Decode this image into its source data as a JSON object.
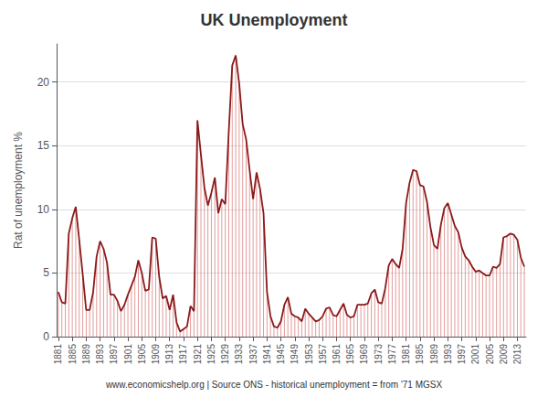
{
  "chart_data": {
    "type": "line",
    "title": "UK Unemployment",
    "ylabel": "Rat of unemployment %",
    "annotations": [
      "www.economicshelp.org | Source ONS - historical unemployment = from '71 MGSX"
    ],
    "x": [
      1881,
      1882,
      1883,
      1884,
      1885,
      1886,
      1887,
      1888,
      1889,
      1890,
      1891,
      1892,
      1893,
      1894,
      1895,
      1896,
      1897,
      1898,
      1899,
      1900,
      1901,
      1902,
      1903,
      1904,
      1905,
      1906,
      1907,
      1908,
      1909,
      1910,
      1911,
      1912,
      1913,
      1914,
      1915,
      1916,
      1917,
      1918,
      1919,
      1920,
      1921,
      1922,
      1923,
      1924,
      1925,
      1926,
      1927,
      1928,
      1929,
      1930,
      1931,
      1932,
      1933,
      1934,
      1935,
      1936,
      1937,
      1938,
      1939,
      1940,
      1941,
      1942,
      1943,
      1944,
      1945,
      1946,
      1947,
      1948,
      1949,
      1950,
      1951,
      1952,
      1953,
      1954,
      1955,
      1956,
      1957,
      1958,
      1959,
      1960,
      1961,
      1962,
      1963,
      1964,
      1965,
      1966,
      1967,
      1968,
      1969,
      1970,
      1971,
      1972,
      1973,
      1974,
      1975,
      1976,
      1977,
      1978,
      1979,
      1980,
      1981,
      1982,
      1983,
      1984,
      1985,
      1986,
      1987,
      1988,
      1989,
      1990,
      1991,
      1992,
      1993,
      1994,
      1995,
      1996,
      1997,
      1998,
      1999,
      2000,
      2001,
      2002,
      2003,
      2004,
      2005,
      2006,
      2007,
      2008,
      2009,
      2010,
      2011,
      2012,
      2013,
      2014,
      2015
    ],
    "series": [
      {
        "type": "bar",
        "color": "#D97070",
        "values": [
          3.5,
          2.7,
          2.6,
          8.1,
          9.3,
          10.2,
          7.6,
          4.9,
          2.1,
          2.1,
          3.5,
          6.3,
          7.5,
          6.9,
          5.8,
          3.3,
          3.3,
          2.8,
          2.0,
          2.5,
          3.3,
          4.0,
          4.7,
          6.0,
          5.0,
          3.6,
          3.7,
          7.8,
          7.7,
          4.7,
          3.0,
          3.2,
          2.1,
          3.3,
          1.1,
          0.4,
          0.6,
          0.8,
          2.4,
          2.0,
          17.0,
          14.3,
          11.7,
          10.3,
          11.3,
          12.5,
          9.7,
          10.8,
          10.4,
          16.1,
          21.3,
          22.1,
          19.9,
          16.7,
          15.5,
          13.1,
          10.8,
          12.9,
          11.6,
          9.7,
          3.5,
          1.6,
          0.8,
          0.7,
          1.2,
          2.5,
          3.1,
          1.8,
          1.6,
          1.5,
          1.2,
          2.2,
          1.8,
          1.5,
          1.2,
          1.3,
          1.6,
          2.2,
          2.3,
          1.7,
          1.6,
          2.1,
          2.6,
          1.7,
          1.5,
          1.6,
          2.5,
          2.5,
          2.5,
          2.6,
          3.4,
          3.7,
          2.7,
          2.6,
          3.8,
          5.6,
          6.1,
          5.7,
          5.4,
          6.9,
          10.5,
          12.1,
          13.1,
          13.0,
          11.9,
          11.8,
          10.6,
          8.6,
          7.2,
          6.9,
          8.8,
          10.1,
          10.5,
          9.6,
          8.7,
          8.2,
          7.0,
          6.3,
          6.0,
          5.5,
          5.1,
          5.2,
          5.0,
          4.8,
          4.8,
          5.5,
          5.4,
          5.7,
          7.8,
          7.9,
          8.1,
          8.0,
          7.6,
          6.2,
          5.5
        ]
      },
      {
        "type": "line",
        "color": "#8B1A1A",
        "values": [
          3.5,
          2.7,
          2.6,
          8.1,
          9.3,
          10.2,
          7.6,
          4.9,
          2.1,
          2.1,
          3.5,
          6.3,
          7.5,
          6.9,
          5.8,
          3.3,
          3.3,
          2.8,
          2.0,
          2.5,
          3.3,
          4.0,
          4.7,
          6.0,
          5.0,
          3.6,
          3.7,
          7.8,
          7.7,
          4.7,
          3.0,
          3.2,
          2.1,
          3.3,
          1.1,
          0.4,
          0.6,
          0.8,
          2.4,
          2.0,
          17.0,
          14.3,
          11.7,
          10.3,
          11.3,
          12.5,
          9.7,
          10.8,
          10.4,
          16.1,
          21.3,
          22.1,
          19.9,
          16.7,
          15.5,
          13.1,
          10.8,
          12.9,
          11.6,
          9.7,
          3.5,
          1.6,
          0.8,
          0.7,
          1.2,
          2.5,
          3.1,
          1.8,
          1.6,
          1.5,
          1.2,
          2.2,
          1.8,
          1.5,
          1.2,
          1.3,
          1.6,
          2.2,
          2.3,
          1.7,
          1.6,
          2.1,
          2.6,
          1.7,
          1.5,
          1.6,
          2.5,
          2.5,
          2.5,
          2.6,
          3.4,
          3.7,
          2.7,
          2.6,
          3.8,
          5.6,
          6.1,
          5.7,
          5.4,
          6.9,
          10.5,
          12.1,
          13.1,
          13.0,
          11.9,
          11.8,
          10.6,
          8.6,
          7.2,
          6.9,
          8.8,
          10.1,
          10.5,
          9.6,
          8.7,
          8.2,
          7.0,
          6.3,
          6.0,
          5.5,
          5.1,
          5.2,
          5.0,
          4.8,
          4.8,
          5.5,
          5.4,
          5.7,
          7.8,
          7.9,
          8.1,
          8.0,
          7.6,
          6.2,
          5.5
        ]
      }
    ],
    "xlim": [
      1880.5,
      2015.5
    ],
    "xticks": [
      1881,
      1885,
      1889,
      1893,
      1897,
      1901,
      1905,
      1909,
      1913,
      1917,
      1921,
      1925,
      1929,
      1933,
      1937,
      1941,
      1945,
      1949,
      1953,
      1957,
      1961,
      1965,
      1969,
      1973,
      1977,
      1981,
      1985,
      1989,
      1993,
      1997,
      2001,
      2005,
      2009,
      2013
    ],
    "ylim": [
      0,
      23
    ],
    "yticks": [
      0,
      5,
      10,
      15,
      20
    ],
    "grid": true
  }
}
